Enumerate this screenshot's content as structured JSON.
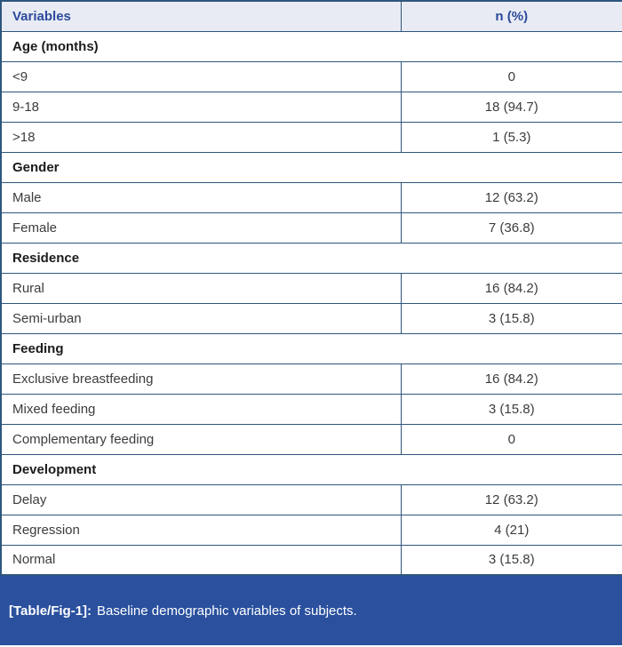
{
  "table": {
    "columns": [
      "Variables",
      "n (%)"
    ],
    "sections": [
      {
        "title": "Age (months)",
        "rows": [
          {
            "label": "<9",
            "value": "0"
          },
          {
            "label": "9-18",
            "value": "18 (94.7)"
          },
          {
            "label": ">18",
            "value": "1 (5.3)"
          }
        ]
      },
      {
        "title": "Gender",
        "rows": [
          {
            "label": "Male",
            "value": "12 (63.2)"
          },
          {
            "label": "Female",
            "value": "7 (36.8)"
          }
        ]
      },
      {
        "title": "Residence",
        "rows": [
          {
            "label": "Rural",
            "value": "16 (84.2)"
          },
          {
            "label": "Semi-urban",
            "value": "3 (15.8)"
          }
        ]
      },
      {
        "title": "Feeding",
        "rows": [
          {
            "label": "Exclusive breastfeeding",
            "value": "16 (84.2)"
          },
          {
            "label": "Mixed feeding",
            "value": "3 (15.8)"
          },
          {
            "label": "Complementary feeding",
            "value": "0"
          }
        ]
      },
      {
        "title": "Development",
        "rows": [
          {
            "label": "Delay",
            "value": "12 (63.2)"
          },
          {
            "label": "Regression",
            "value": "4 (21)"
          },
          {
            "label": "Normal",
            "value": "3 (15.8)"
          }
        ]
      }
    ]
  },
  "caption": {
    "tag": "[Table/Fig-1]:",
    "text": "Baseline demographic variables of subjects."
  },
  "colors": {
    "caption_bg": "#2a509e",
    "header_bg": "#e9ebf4",
    "header_text": "#2b4a9c",
    "border": "#2e567d",
    "body_text": "#3c3c3c"
  }
}
